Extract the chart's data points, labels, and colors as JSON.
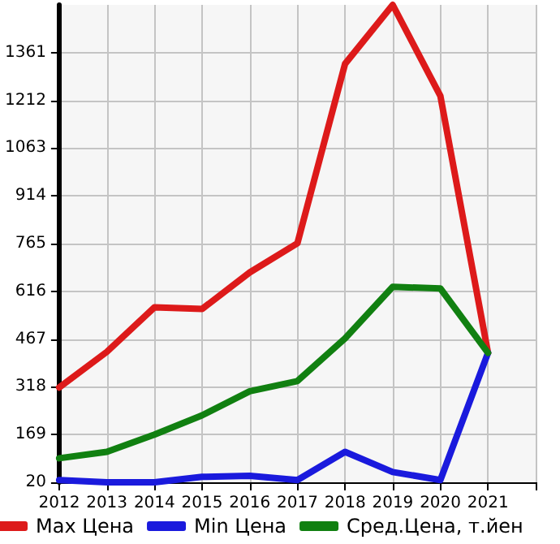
{
  "chart_data": {
    "type": "line",
    "x": [
      2012,
      2013,
      2014,
      2015,
      2016,
      2017,
      2018,
      2019,
      2020,
      2021
    ],
    "series": [
      {
        "name": "Max Цена",
        "color": "#dd1a1a",
        "values": [
          316,
          427,
          566,
          561,
          675,
          766,
          1326,
          1510,
          1226,
          424
        ]
      },
      {
        "name": "Min Цена",
        "color": "#1a1add",
        "values": [
          27,
          20,
          20,
          37,
          40,
          27,
          115,
          52,
          27,
          424
        ]
      },
      {
        "name": "Сред.Цена, т.йен",
        "color": "#118011",
        "values": [
          95,
          115,
          169,
          229,
          304,
          336,
          469,
          630,
          625,
          424
        ]
      }
    ],
    "xlim": [
      2012,
      2022
    ],
    "xticks": [
      2012,
      2013,
      2014,
      2015,
      2016,
      2017,
      2018,
      2019,
      2020,
      2021,
      {
        "value": 2022,
        "label": null
      }
    ],
    "ylim": [
      20,
      1510
    ],
    "yticks": [
      20,
      169,
      318,
      467,
      616,
      765,
      914,
      1063,
      1212,
      1361
    ],
    "grid": true,
    "legend": "bottom",
    "marker": "none",
    "line_style": "solid"
  }
}
